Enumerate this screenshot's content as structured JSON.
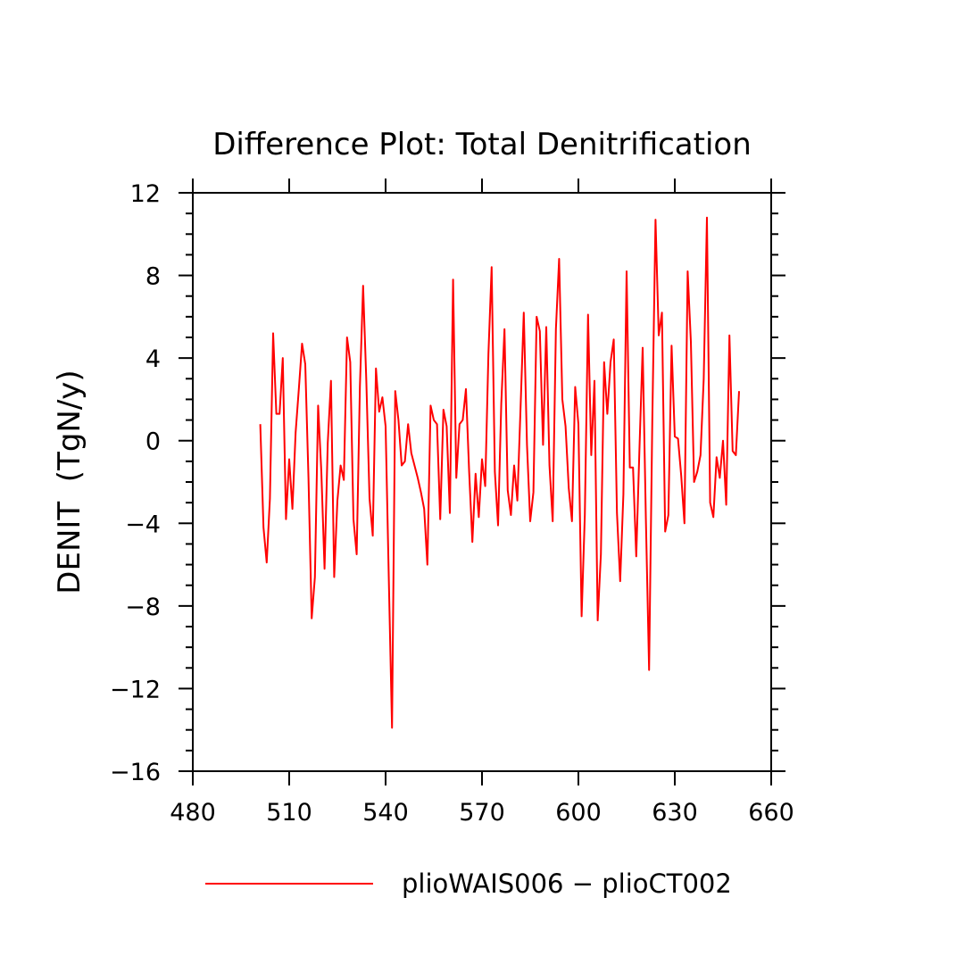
{
  "chart_data": {
    "type": "line",
    "title": "Difference Plot: Total Denitrification",
    "ylabel": "DENIT  (TgN/y)",
    "xlabel": "",
    "xlim": [
      480,
      660
    ],
    "ylim": [
      -16,
      12
    ],
    "x_ticks": [
      480,
      510,
      540,
      570,
      600,
      630,
      660
    ],
    "x_tick_labels": [
      "480",
      "510",
      "540",
      "570",
      "600",
      "630",
      "660"
    ],
    "y_ticks": [
      -16,
      -12,
      -8,
      -4,
      0,
      4,
      8,
      12
    ],
    "y_tick_labels": [
      "−16",
      "−12",
      "−8",
      "−4",
      "0",
      "4",
      "8",
      "12"
    ],
    "grid": false,
    "legend_position": "bottom",
    "series": [
      {
        "name": "plioWAIS006 − plioCT002",
        "color": "#ff0000",
        "x": [
          501,
          502,
          503,
          504,
          505,
          506,
          507,
          508,
          509,
          510,
          511,
          512,
          513,
          514,
          515,
          516,
          517,
          518,
          519,
          520,
          521,
          522,
          523,
          524,
          525,
          526,
          527,
          528,
          529,
          530,
          531,
          532,
          533,
          534,
          535,
          536,
          537,
          538,
          539,
          540,
          541,
          542,
          543,
          544,
          545,
          546,
          547,
          548,
          549,
          550,
          551,
          552,
          553,
          554,
          555,
          556,
          557,
          558,
          559,
          560,
          561,
          562,
          563,
          564,
          565,
          566,
          567,
          568,
          569,
          570,
          571,
          572,
          573,
          574,
          575,
          576,
          577,
          578,
          579,
          580,
          581,
          582,
          583,
          584,
          585,
          586,
          587,
          588,
          589,
          590,
          591,
          592,
          593,
          594,
          595,
          596,
          597,
          598,
          599,
          600,
          601,
          602,
          603,
          604,
          605,
          606,
          607,
          608,
          609,
          610,
          611,
          612,
          613,
          614,
          615,
          616,
          617,
          618,
          619,
          620,
          621,
          622,
          623,
          624,
          625,
          626,
          627,
          628,
          629,
          630,
          631,
          632,
          633,
          634,
          635,
          636,
          637,
          638,
          639,
          640,
          641,
          642,
          643,
          644,
          645,
          646,
          647,
          648,
          649,
          650
        ],
        "y": [
          0.8,
          -4.2,
          -5.9,
          -2.8,
          5.2,
          1.3,
          1.3,
          4.0,
          -3.8,
          -0.9,
          -3.3,
          0.4,
          2.5,
          4.7,
          3.7,
          -1.8,
          -8.6,
          -6.6,
          1.7,
          -1.5,
          -6.2,
          -0.1,
          2.9,
          -6.6,
          -2.9,
          -1.2,
          -1.9,
          5.0,
          3.8,
          -3.8,
          -5.5,
          2.6,
          7.5,
          2.9,
          -2.8,
          -4.6,
          3.5,
          1.4,
          2.1,
          0.7,
          -6.7,
          -13.9,
          2.4,
          1.0,
          -1.2,
          -1.0,
          0.8,
          -0.6,
          -1.2,
          -1.8,
          -2.5,
          -3.3,
          -6.0,
          1.7,
          1.0,
          0.8,
          -3.8,
          1.5,
          0.7,
          -3.5,
          7.8,
          -1.8,
          0.8,
          1.0,
          2.5,
          -1.5,
          -4.9,
          -1.6,
          -3.7,
          -0.9,
          -2.2,
          4.2,
          8.4,
          -1.5,
          -4.1,
          1.8,
          5.4,
          -2.4,
          -3.6,
          -1.2,
          -2.9,
          1.6,
          6.2,
          -0.2,
          -3.9,
          -2.5,
          6.0,
          5.3,
          -0.2,
          5.5,
          -1.2,
          -3.9,
          5.4,
          8.8,
          2.0,
          0.7,
          -2.3,
          -3.9,
          2.6,
          0.8,
          -8.5,
          -3.6,
          6.1,
          -0.7,
          2.9,
          -8.7,
          -5.5,
          3.8,
          1.3,
          3.8,
          4.9,
          -3.5,
          -6.8,
          -2.6,
          8.2,
          -1.3,
          -1.3,
          -5.6,
          -0.4,
          4.5,
          -3.8,
          -11.1,
          1.0,
          10.7,
          5.1,
          6.2,
          -4.4,
          -3.6,
          4.6,
          0.2,
          0.1,
          -1.7,
          -4.0,
          8.2,
          4.8,
          -2.0,
          -1.5,
          -0.7,
          3.0,
          10.8,
          -3.0,
          -3.7,
          -0.8,
          -1.8,
          0.0,
          -3.1,
          5.1,
          -0.5,
          -0.7,
          2.4
        ]
      }
    ]
  }
}
